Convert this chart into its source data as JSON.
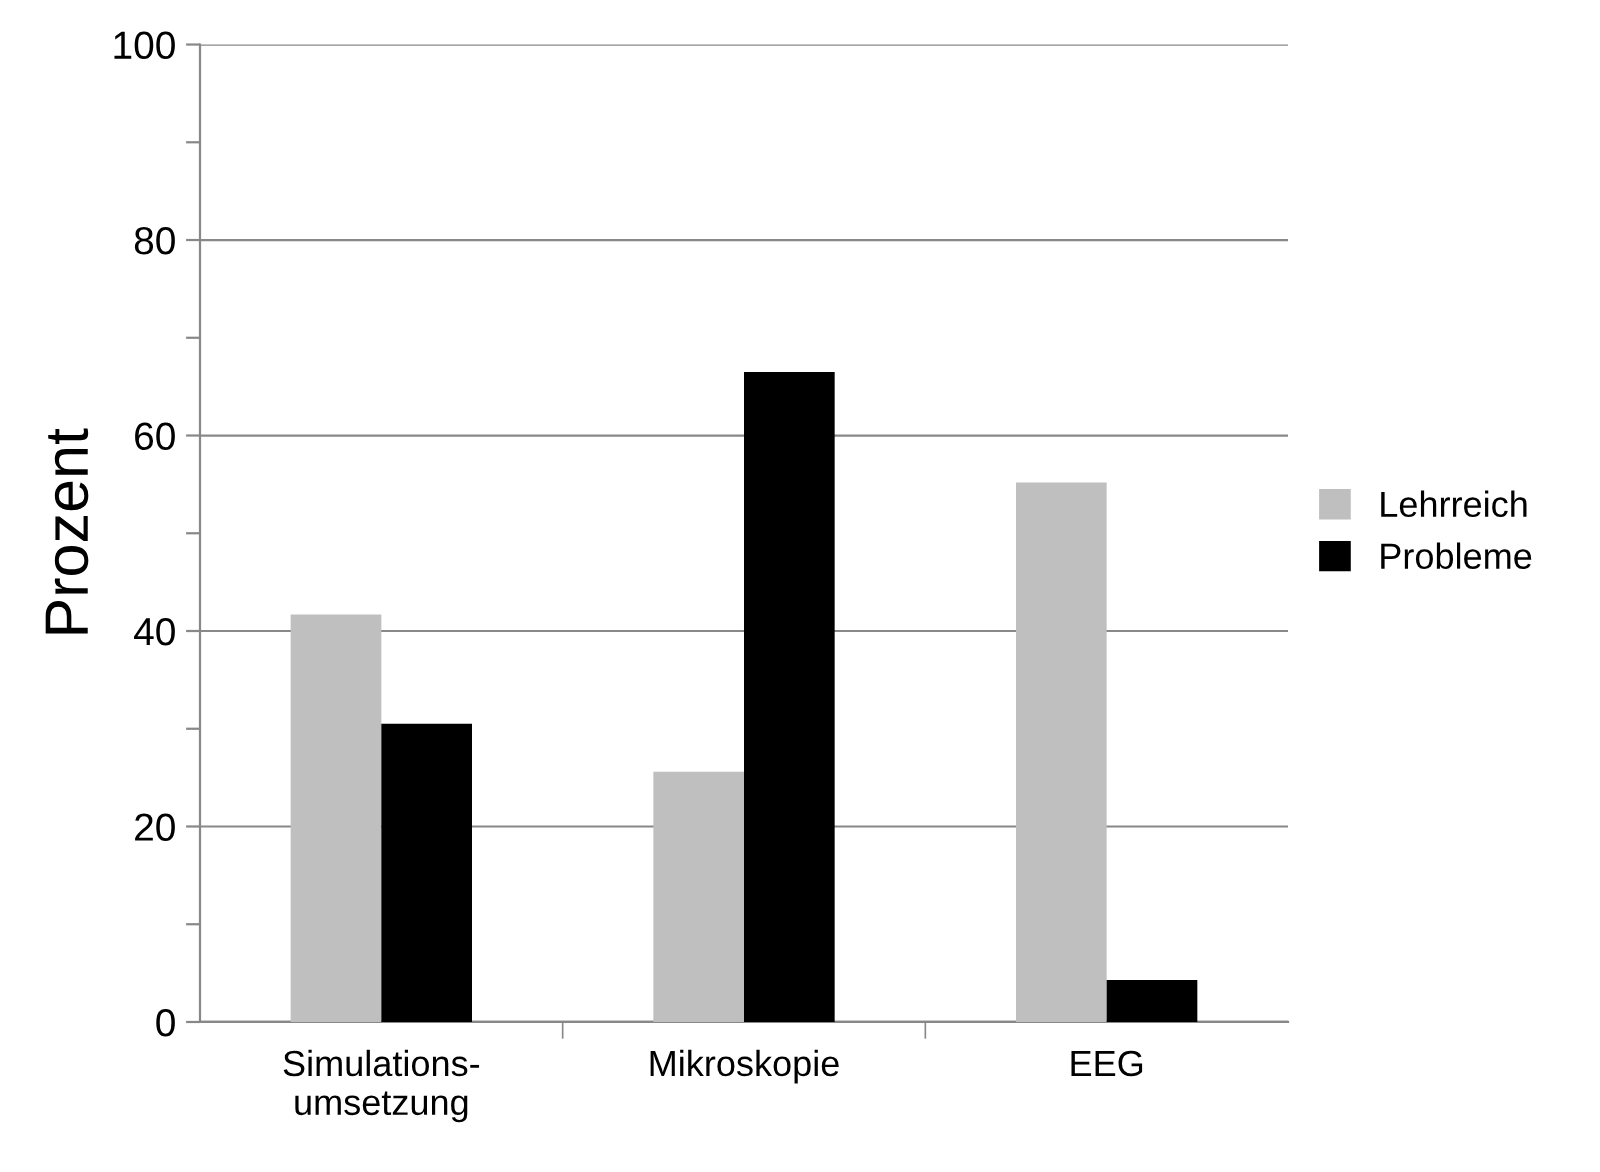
{
  "chart_data": {
    "type": "bar",
    "ylabel": "Prozent",
    "categories": [
      "Simulations-\numsetzung",
      "Mikroskopie",
      "EEG"
    ],
    "series": [
      {
        "name": "Lehrreich",
        "color": "#bfbfbf",
        "values": [
          41.7,
          25.6,
          55.2
        ]
      },
      {
        "name": "Probleme",
        "color": "#000000",
        "values": [
          30.5,
          66.5,
          4.3
        ]
      }
    ],
    "ylim": [
      0,
      100
    ],
    "yticks": [
      0,
      {
        "value": 10,
        "label": null
      },
      20,
      {
        "value": 30,
        "label": null
      },
      40,
      {
        "value": 50,
        "label": null
      },
      60,
      {
        "value": 70,
        "label": null
      },
      80,
      {
        "value": 90,
        "label": null
      },
      100
    ],
    "grid": "y",
    "legend": "right"
  }
}
